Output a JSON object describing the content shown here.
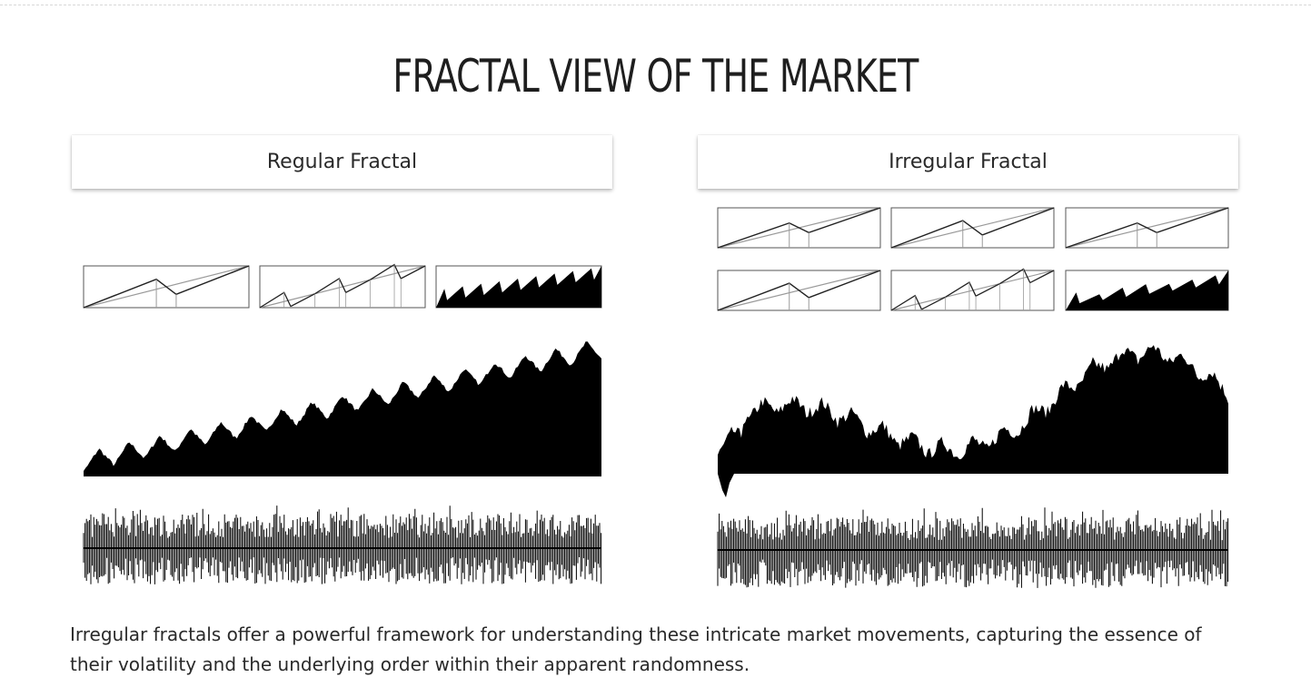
{
  "page": {
    "title": "FRACTAL VIEW OF THE MARKET",
    "caption": "Irregular fractals offer a powerful framework for understanding these intricate market movements, capturing the essence of their volatility and the underlying order within their apparent randomness."
  },
  "panels": [
    {
      "id": "regular",
      "label": "Regular Fractal",
      "generator_rows": 1,
      "stages_per_row": 3
    },
    {
      "id": "irregular",
      "label": "Irregular Fractal",
      "generator_rows": 2,
      "stages_per_row": 3
    }
  ],
  "colors": {
    "ink": "#000000",
    "trend_line": "#9a9a9a",
    "frame": "#555555",
    "header_bg": "#ffffff",
    "text": "#222222"
  }
}
